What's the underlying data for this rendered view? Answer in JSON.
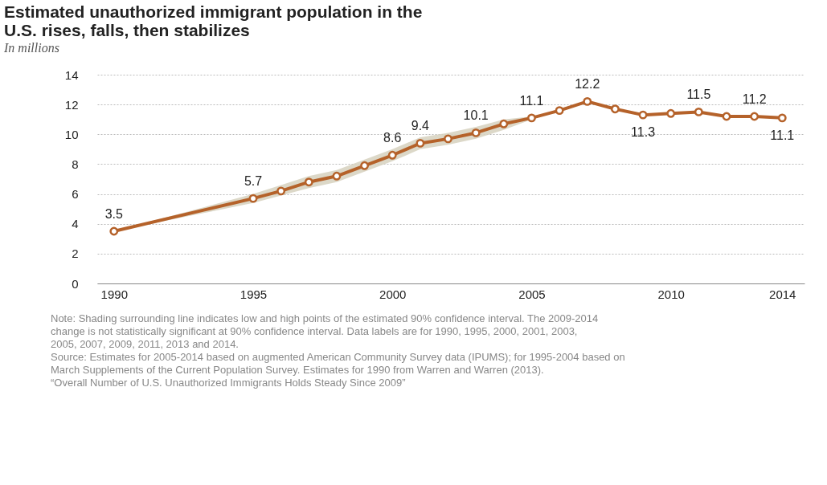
{
  "chart_data": {
    "type": "line",
    "title": "Estimated unauthorized immigrant population in the U.S. rises, falls, then stabilizes",
    "subtitle": "In millions",
    "x": [
      1990,
      1995,
      1996,
      1997,
      1998,
      1999,
      2000,
      2001,
      2002,
      2003,
      2004,
      2005,
      2006,
      2007,
      2008,
      2009,
      2010,
      2011,
      2012,
      2013,
      2014
    ],
    "series": [
      {
        "color": "#b5622a",
        "values": [
          3.5,
          5.7,
          6.2,
          6.8,
          7.2,
          7.9,
          8.6,
          9.4,
          9.7,
          10.1,
          10.7,
          11.1,
          11.6,
          12.2,
          11.7,
          11.3,
          11.4,
          11.5,
          11.2,
          11.2,
          11.1
        ],
        "lower": [
          3.5,
          5.4,
          5.9,
          6.4,
          6.8,
          7.5,
          8.2,
          9.0,
          9.3,
          9.7,
          10.3,
          11.0,
          null,
          null,
          null,
          null,
          null,
          null,
          null,
          null,
          null
        ],
        "upper": [
          3.5,
          6.0,
          6.6,
          7.2,
          7.6,
          8.3,
          9.0,
          9.8,
          10.1,
          10.5,
          11.0,
          11.2,
          null,
          null,
          null,
          null,
          null,
          null,
          null,
          null,
          null
        ],
        "value_labels": [
          "3.5",
          "5.7",
          null,
          null,
          null,
          null,
          "8.6",
          "9.4",
          null,
          "10.1",
          null,
          "11.1",
          null,
          "12.2",
          null,
          "11.3",
          null,
          "11.5",
          null,
          "11.2",
          "11.1"
        ]
      }
    ],
    "xlim": [
      1989.4,
      2014.8
    ],
    "xticks": [
      1990,
      1995,
      2000,
      2005,
      2010,
      2014
    ],
    "ylim": [
      0,
      14
    ],
    "yticks": [
      0,
      2,
      4,
      6,
      8,
      10,
      12,
      14
    ],
    "grid": "y",
    "marker": "circle",
    "line_style": "solid",
    "annotations": [
      "Note: Shading surrounding line indicates low and high points of the estimated 90% confidence interval. The 2009-2014 change is not statistically significant at 90% confidence interval. Data labels are for 1990, 1995, 2000, 2001, 2003, 2005, 2007, 2009, 2011, 2013 and 2014.",
      "Source: Estimates for 2005-2014 based on augmented American Community Survey data (IPUMS); for 1995-2004 based on March Supplements of the Current Population Survey. Estimates for 1990 from Warren and Warren (2013).",
      "“Overall Number of U.S. Unauthorized Immigrants Holds Steady Since 2009”"
    ]
  }
}
